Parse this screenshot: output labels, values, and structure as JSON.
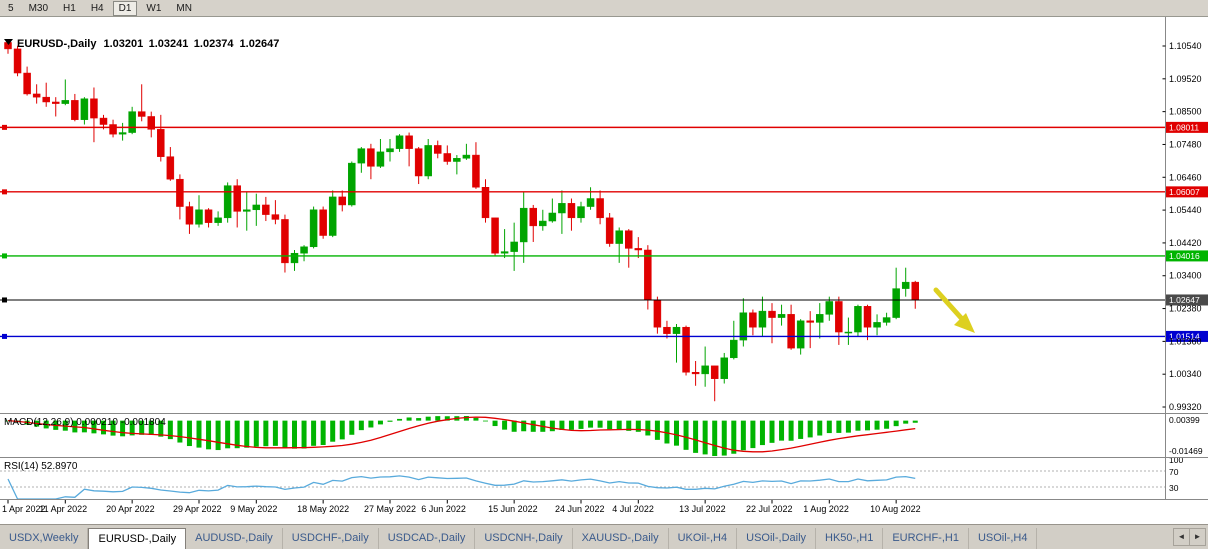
{
  "toolbar": {
    "timeframes": [
      "5",
      "M30",
      "H1",
      "H4",
      "D1",
      "W1",
      "MN"
    ],
    "active_timeframe": "D1"
  },
  "chart_info": {
    "symbol": "EURUSD-,Daily",
    "open": "1.03201",
    "high": "1.03241",
    "low": "1.02374",
    "close": "1.02647"
  },
  "chart_data": {
    "type": "candlestick",
    "title": "EURUSD-,Daily",
    "up_color": "#00a400",
    "down_color": "#e00000",
    "price_ticks": [
      "1.10540",
      "1.09520",
      "1.08500",
      "1.07480",
      "1.06460",
      "1.05440",
      "1.04420",
      "1.03400",
      "1.02380",
      "1.01360",
      "1.00340",
      "0.99320"
    ],
    "date_ticks": [
      {
        "label": "1 Apr 2022",
        "bar": 0
      },
      {
        "label": "11 Apr 2022",
        "bar": 6
      },
      {
        "label": "20 Apr 2022",
        "bar": 13
      },
      {
        "label": "29 Apr 2022",
        "bar": 20
      },
      {
        "label": "9 May 2022",
        "bar": 26
      },
      {
        "label": "18 May 2022",
        "bar": 33
      },
      {
        "label": "27 May 2022",
        "bar": 40
      },
      {
        "label": "6 Jun 2022",
        "bar": 46
      },
      {
        "label": "15 Jun 2022",
        "bar": 53
      },
      {
        "label": "24 Jun 2022",
        "bar": 60
      },
      {
        "label": "4 Jul 2022",
        "bar": 66
      },
      {
        "label": "13 Jul 2022",
        "bar": 73
      },
      {
        "label": "22 Jul 2022",
        "bar": 80
      },
      {
        "label": "1 Aug 2022",
        "bar": 86
      },
      {
        "label": "10 Aug 2022",
        "bar": 93
      }
    ],
    "hlines": [
      {
        "label": "1.08011",
        "price": 1.08011,
        "color": "#e00000"
      },
      {
        "label": "1.06007",
        "price": 1.06007,
        "color": "#e00000"
      },
      {
        "label": "1.04016",
        "price": 1.04016,
        "color": "#00b400"
      },
      {
        "label": "1.02647",
        "price": 1.02647,
        "color": "#000000",
        "tag_color": "#4a4a4a"
      },
      {
        "label": "1.01514",
        "price": 1.01514,
        "color": "#0000d0"
      }
    ],
    "ohlc": [
      [
        1.1065,
        1.1075,
        1.103,
        1.1045
      ],
      [
        1.1045,
        1.1055,
        1.096,
        1.097
      ],
      [
        1.097,
        1.099,
        1.09,
        1.0905
      ],
      [
        1.0905,
        1.0935,
        1.0875,
        1.0895
      ],
      [
        1.0895,
        1.094,
        1.0865,
        1.088
      ],
      [
        1.088,
        1.0895,
        1.0835,
        1.0875
      ],
      [
        1.0875,
        1.095,
        1.087,
        1.0885
      ],
      [
        1.0885,
        1.0905,
        1.082,
        1.0825
      ],
      [
        1.0825,
        1.0895,
        1.081,
        1.089
      ],
      [
        1.089,
        1.0925,
        1.0755,
        1.083
      ],
      [
        1.083,
        1.084,
        1.0795,
        1.081
      ],
      [
        1.081,
        1.0825,
        1.077,
        1.078
      ],
      [
        1.078,
        1.0815,
        1.076,
        1.0785
      ],
      [
        1.0785,
        1.0865,
        1.078,
        1.085
      ],
      [
        1.085,
        1.0935,
        1.082,
        1.0835
      ],
      [
        1.0835,
        1.085,
        1.077,
        1.0795
      ],
      [
        1.0795,
        1.084,
        1.0695,
        1.071
      ],
      [
        1.071,
        1.074,
        1.0635,
        1.064
      ],
      [
        1.064,
        1.0655,
        1.0515,
        1.0555
      ],
      [
        1.0555,
        1.057,
        1.047,
        1.05
      ],
      [
        1.05,
        1.059,
        1.049,
        1.0545
      ],
      [
        1.0545,
        1.055,
        1.049,
        1.0505
      ],
      [
        1.0505,
        1.054,
        1.0495,
        1.052
      ],
      [
        1.052,
        1.063,
        1.0505,
        1.062
      ],
      [
        1.062,
        1.064,
        1.049,
        1.054
      ],
      [
        1.054,
        1.06,
        1.048,
        1.0545
      ],
      [
        1.0545,
        1.0595,
        1.0495,
        1.056
      ],
      [
        1.056,
        1.0585,
        1.051,
        1.053
      ],
      [
        1.053,
        1.0575,
        1.05,
        1.0515
      ],
      [
        1.0515,
        1.053,
        1.035,
        1.038
      ],
      [
        1.038,
        1.042,
        1.0355,
        1.041
      ],
      [
        1.041,
        1.0435,
        1.0385,
        1.043
      ],
      [
        1.043,
        1.0555,
        1.0425,
        1.0545
      ],
      [
        1.0545,
        1.0555,
        1.0455,
        1.0465
      ],
      [
        1.0465,
        1.0605,
        1.046,
        1.0585
      ],
      [
        1.0585,
        1.0605,
        1.054,
        1.056
      ],
      [
        1.056,
        1.0695,
        1.0555,
        1.069
      ],
      [
        1.069,
        1.074,
        1.066,
        1.0735
      ],
      [
        1.0735,
        1.075,
        1.064,
        1.068
      ],
      [
        1.068,
        1.0765,
        1.0675,
        1.0725
      ],
      [
        1.0725,
        1.0765,
        1.0695,
        1.0735
      ],
      [
        1.0735,
        1.078,
        1.0725,
        1.0775
      ],
      [
        1.0775,
        1.0785,
        1.068,
        1.0735
      ],
      [
        1.0735,
        1.074,
        1.0625,
        1.065
      ],
      [
        1.065,
        1.0765,
        1.064,
        1.0745
      ],
      [
        1.0745,
        1.076,
        1.0705,
        1.072
      ],
      [
        1.072,
        1.0745,
        1.0685,
        1.0695
      ],
      [
        1.0695,
        1.0715,
        1.0655,
        1.0705
      ],
      [
        1.0705,
        1.075,
        1.07,
        1.0715
      ],
      [
        1.0715,
        1.0755,
        1.061,
        1.0615
      ],
      [
        1.0615,
        1.064,
        1.0505,
        1.052
      ],
      [
        1.052,
        1.052,
        1.04,
        1.041
      ],
      [
        1.041,
        1.0485,
        1.0395,
        1.0415
      ],
      [
        1.0415,
        1.0505,
        1.0355,
        1.0445
      ],
      [
        1.0445,
        1.06,
        1.038,
        1.055
      ],
      [
        1.055,
        1.056,
        1.0445,
        1.0495
      ],
      [
        1.0495,
        1.0545,
        1.048,
        1.051
      ],
      [
        1.051,
        1.058,
        1.0505,
        1.0535
      ],
      [
        1.0535,
        1.0605,
        1.047,
        1.0565
      ],
      [
        1.0565,
        1.058,
        1.048,
        1.052
      ],
      [
        1.052,
        1.057,
        1.0505,
        1.0555
      ],
      [
        1.0555,
        1.0615,
        1.0545,
        1.058
      ],
      [
        1.058,
        1.0605,
        1.05,
        1.052
      ],
      [
        1.052,
        1.0535,
        1.043,
        1.044
      ],
      [
        1.044,
        1.049,
        1.038,
        1.048
      ],
      [
        1.048,
        1.0485,
        1.0365,
        1.0425
      ],
      [
        1.0425,
        1.046,
        1.0395,
        1.042
      ],
      [
        1.042,
        1.0435,
        1.0235,
        1.0265
      ],
      [
        1.0265,
        1.0275,
        1.016,
        1.018
      ],
      [
        1.018,
        1.02,
        1.0145,
        1.016
      ],
      [
        1.016,
        1.019,
        1.007,
        1.018
      ],
      [
        1.018,
        1.0185,
        1.003,
        1.004
      ],
      [
        1.004,
        1.0075,
        0.9998,
        1.0035
      ],
      [
        1.0035,
        1.012,
        0.9995,
        1.006
      ],
      [
        1.006,
        1.006,
        0.995,
        1.002
      ],
      [
        1.002,
        1.01,
        1.0005,
        1.0085
      ],
      [
        1.0085,
        1.02,
        1.008,
        1.014
      ],
      [
        1.014,
        1.027,
        1.012,
        1.0225
      ],
      [
        1.0225,
        1.0235,
        1.0155,
        1.018
      ],
      [
        1.018,
        1.0275,
        1.015,
        1.023
      ],
      [
        1.023,
        1.0255,
        1.013,
        1.021
      ],
      [
        1.021,
        1.025,
        1.0185,
        1.022
      ],
      [
        1.022,
        1.025,
        1.011,
        1.0115
      ],
      [
        1.0115,
        1.0205,
        1.0095,
        1.02
      ],
      [
        1.02,
        1.023,
        1.0115,
        1.0195
      ],
      [
        1.0195,
        1.0255,
        1.0145,
        1.022
      ],
      [
        1.022,
        1.0275,
        1.02,
        1.026
      ],
      [
        1.026,
        1.0275,
        1.0125,
        1.0165
      ],
      [
        1.0165,
        1.021,
        1.0125,
        1.0165
      ],
      [
        1.0165,
        1.025,
        1.015,
        1.0245
      ],
      [
        1.0245,
        1.025,
        1.014,
        1.018
      ],
      [
        1.018,
        1.022,
        1.0155,
        1.0195
      ],
      [
        1.0195,
        1.0225,
        1.0185,
        1.021
      ],
      [
        1.021,
        1.0365,
        1.0205,
        1.03
      ],
      [
        1.03,
        1.0365,
        1.0275,
        1.032
      ],
      [
        1.03201,
        1.03241,
        1.02374,
        1.02647
      ]
    ],
    "annotation_arrow": {
      "color": "#ddd020"
    }
  },
  "macd_panel": {
    "label": "MACD(12,26,9) 0.000210 -0.001804",
    "scale_top": "0.00399",
    "scale_bottom": "-0.01469",
    "histogram_color": "#00b400",
    "signal_color": "#e00000"
  },
  "rsi_panel": {
    "label": "RSI(14) 52.8970",
    "line_color": "#58aadc",
    "scale": [
      {
        "label": "100",
        "value": 100
      },
      {
        "label": "70",
        "value": 70
      },
      {
        "label": "30",
        "value": 30
      }
    ],
    "level_lines": [
      70,
      30
    ]
  },
  "tabs": {
    "items": [
      "USDX,Weekly",
      "EURUSD-,Daily",
      "AUDUSD-,Daily",
      "USDCHF-,Daily",
      "USDCAD-,Daily",
      "USDCNH-,Daily",
      "XAUUSD-,Daily",
      "UKOil-,H4",
      "USOil-,Daily",
      "HK50-,H1",
      "EURCHF-,H1",
      "USOil-,H4"
    ],
    "active": "EURUSD-,Daily"
  },
  "icons": {
    "tab_prev": "◄",
    "tab_next": "►",
    "symbol_marker": "▼"
  }
}
